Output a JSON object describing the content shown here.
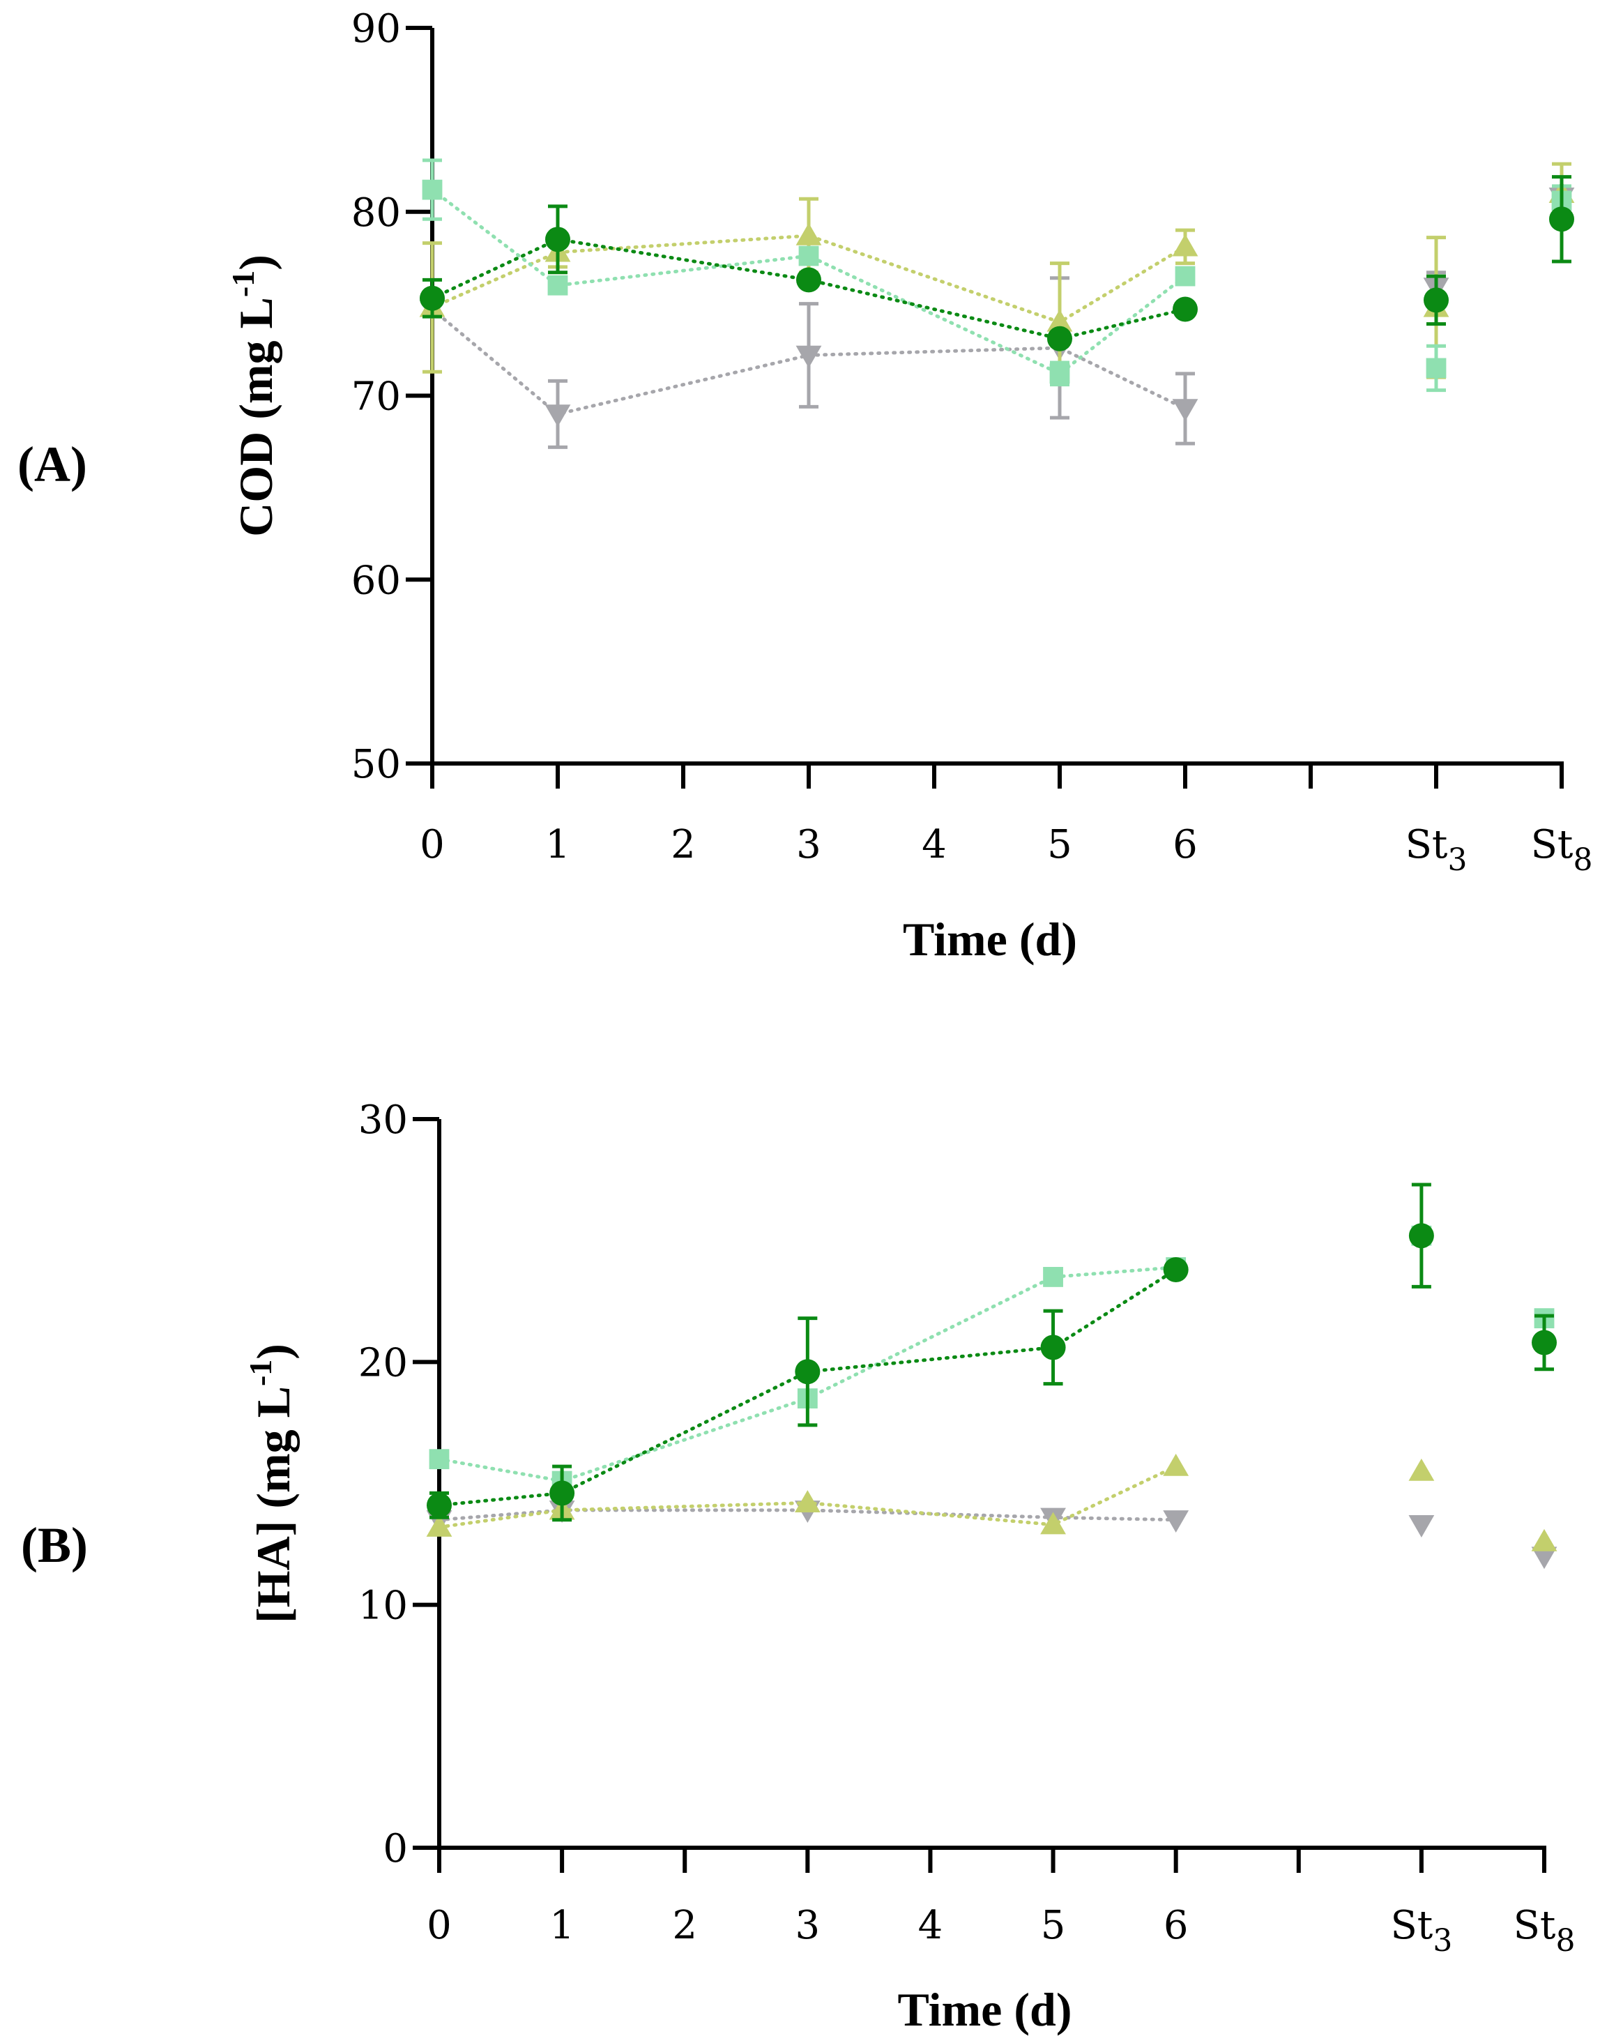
{
  "colors": {
    "s1": "#0b8a14",
    "s2": "#8fe0b0",
    "s3": "#c3cf6c",
    "s4": "#a6a6ab"
  },
  "chart_data": [
    {
      "id": "A",
      "type": "scatter",
      "panel_label": "(A)",
      "xlabel": "Time (d)",
      "ylabel_main": "COD (mg L",
      "ylabel_sup": "-1",
      "ylabel_close": ")",
      "ylim": [
        50,
        90
      ],
      "yticks": [
        50,
        60,
        70,
        80,
        90
      ],
      "ytick_labels": [
        "50",
        "60",
        "70",
        "80",
        "90"
      ],
      "xticks": [
        0,
        1,
        2,
        3,
        4,
        5,
        6,
        7,
        8,
        9
      ],
      "xtick_labels": [
        {
          "x": 0,
          "main": "0",
          "sub": ""
        },
        {
          "x": 1,
          "main": "1",
          "sub": ""
        },
        {
          "x": 2,
          "main": "2",
          "sub": ""
        },
        {
          "x": 3,
          "main": "3",
          "sub": ""
        },
        {
          "x": 4,
          "main": "4",
          "sub": ""
        },
        {
          "x": 5,
          "main": "5",
          "sub": ""
        },
        {
          "x": 6,
          "main": "6",
          "sub": ""
        },
        {
          "x": 8,
          "main": "St",
          "sub": "3"
        },
        {
          "x": 9,
          "main": "St",
          "sub": "8"
        }
      ],
      "series": [
        {
          "key": "s4",
          "marker": "triangle-down",
          "points": [
            {
              "x": 0,
              "y": 74.7,
              "err": 0,
              "line": true
            },
            {
              "x": 1,
              "y": 69.0,
              "err": 1.8,
              "line": true
            },
            {
              "x": 3,
              "y": 72.2,
              "err": 2.8,
              "line": true
            },
            {
              "x": 5,
              "y": 72.6,
              "err": 3.8,
              "line": true
            },
            {
              "x": 6,
              "y": 69.3,
              "err": 1.9,
              "line": true
            },
            {
              "x": 8,
              "y": 75.9,
              "err": 0.8,
              "line": false
            },
            {
              "x": 9,
              "y": 80.8,
              "err": 0.5,
              "line": false
            }
          ]
        },
        {
          "key": "s3",
          "marker": "triangle-up",
          "points": [
            {
              "x": 0,
              "y": 74.8,
              "err": 3.5,
              "line": true
            },
            {
              "x": 1,
              "y": 77.8,
              "err": 0.8,
              "line": true
            },
            {
              "x": 3,
              "y": 78.7,
              "err": 2.0,
              "line": true
            },
            {
              "x": 5,
              "y": 74.0,
              "err": 3.2,
              "line": true
            },
            {
              "x": 6,
              "y": 78.1,
              "err": 0.9,
              "line": true
            },
            {
              "x": 8,
              "y": 74.8,
              "err": 3.8,
              "line": false
            },
            {
              "x": 9,
              "y": 81.0,
              "err": 1.6,
              "line": false
            }
          ]
        },
        {
          "key": "s2",
          "marker": "square",
          "points": [
            {
              "x": 0,
              "y": 81.2,
              "err": 1.6,
              "line": true
            },
            {
              "x": 1,
              "y": 76.0,
              "err": 0,
              "line": true
            },
            {
              "x": 3,
              "y": 77.6,
              "err": 0,
              "line": true
            },
            {
              "x": 5,
              "y": 71.2,
              "err": 0.6,
              "line": true
            },
            {
              "x": 6,
              "y": 76.5,
              "err": 0,
              "line": true
            },
            {
              "x": 8,
              "y": 71.5,
              "err": 1.2,
              "line": false
            },
            {
              "x": 9,
              "y": 80.6,
              "err": 0.8,
              "line": false
            }
          ]
        },
        {
          "key": "s1",
          "marker": "circle",
          "points": [
            {
              "x": 0,
              "y": 75.3,
              "err": 1.0,
              "line": true
            },
            {
              "x": 1,
              "y": 78.5,
              "err": 1.8,
              "line": true
            },
            {
              "x": 3,
              "y": 76.3,
              "err": 0,
              "line": true
            },
            {
              "x": 5,
              "y": 73.1,
              "err": 0,
              "line": true
            },
            {
              "x": 6,
              "y": 74.7,
              "err": 0,
              "line": true
            },
            {
              "x": 8,
              "y": 75.2,
              "err": 1.3,
              "line": false
            },
            {
              "x": 9,
              "y": 79.6,
              "err": 2.3,
              "line": false
            }
          ]
        }
      ]
    },
    {
      "id": "B",
      "type": "scatter",
      "panel_label": "(B)",
      "xlabel": "Time (d)",
      "ylabel_main": "[HA] (mg L",
      "ylabel_sup": "-1",
      "ylabel_close": ")",
      "ylim": [
        0,
        30
      ],
      "yticks": [
        0,
        10,
        20,
        30
      ],
      "ytick_labels": [
        "0",
        "10",
        "20",
        "30"
      ],
      "xticks": [
        0,
        1,
        2,
        3,
        4,
        5,
        6,
        7,
        8,
        9
      ],
      "xtick_labels": [
        {
          "x": 0,
          "main": "0",
          "sub": ""
        },
        {
          "x": 1,
          "main": "1",
          "sub": ""
        },
        {
          "x": 2,
          "main": "2",
          "sub": ""
        },
        {
          "x": 3,
          "main": "3",
          "sub": ""
        },
        {
          "x": 4,
          "main": "4",
          "sub": ""
        },
        {
          "x": 5,
          "main": "5",
          "sub": ""
        },
        {
          "x": 6,
          "main": "6",
          "sub": ""
        },
        {
          "x": 8,
          "main": "St",
          "sub": "3"
        },
        {
          "x": 9,
          "main": "St",
          "sub": "8"
        }
      ],
      "series": [
        {
          "key": "s4",
          "marker": "triangle-down",
          "points": [
            {
              "x": 0,
              "y": 13.5,
              "err": 0,
              "line": true
            },
            {
              "x": 1,
              "y": 13.9,
              "err": 0,
              "line": true
            },
            {
              "x": 3,
              "y": 13.9,
              "err": 0,
              "line": true
            },
            {
              "x": 5,
              "y": 13.6,
              "err": 0,
              "line": true
            },
            {
              "x": 6,
              "y": 13.5,
              "err": 0,
              "line": true
            },
            {
              "x": 8,
              "y": 13.3,
              "err": 0,
              "line": false
            },
            {
              "x": 9,
              "y": 12.0,
              "err": 0,
              "line": false
            }
          ]
        },
        {
          "key": "s3",
          "marker": "triangle-up",
          "points": [
            {
              "x": 0,
              "y": 13.2,
              "err": 0,
              "line": true
            },
            {
              "x": 1,
              "y": 13.9,
              "err": 0,
              "line": true
            },
            {
              "x": 3,
              "y": 14.2,
              "err": 0,
              "line": true
            },
            {
              "x": 5,
              "y": 13.3,
              "err": 0,
              "line": true
            },
            {
              "x": 6,
              "y": 15.7,
              "err": 0,
              "line": true
            },
            {
              "x": 8,
              "y": 15.5,
              "err": 0,
              "line": false
            },
            {
              "x": 9,
              "y": 12.6,
              "err": 0,
              "line": false
            }
          ]
        },
        {
          "key": "s2",
          "marker": "square",
          "points": [
            {
              "x": 0,
              "y": 16.0,
              "err": 0,
              "line": true
            },
            {
              "x": 1,
              "y": 15.1,
              "err": 0,
              "line": true
            },
            {
              "x": 3,
              "y": 18.5,
              "err": 0,
              "line": true
            },
            {
              "x": 5,
              "y": 23.5,
              "err": 0,
              "line": true
            },
            {
              "x": 6,
              "y": 23.9,
              "err": 0,
              "line": true
            },
            {
              "x": 8,
              "y": 25.2,
              "err": 0,
              "line": false
            },
            {
              "x": 9,
              "y": 21.8,
              "err": 0,
              "line": false
            }
          ]
        },
        {
          "key": "s1",
          "marker": "circle",
          "points": [
            {
              "x": 0,
              "y": 14.1,
              "err": 0.5,
              "line": true
            },
            {
              "x": 1,
              "y": 14.6,
              "err": 1.1,
              "line": true
            },
            {
              "x": 3,
              "y": 19.6,
              "err": 2.2,
              "line": true
            },
            {
              "x": 5,
              "y": 20.6,
              "err": 1.5,
              "line": true
            },
            {
              "x": 6,
              "y": 23.8,
              "err": 0,
              "line": true
            },
            {
              "x": 8,
              "y": 25.2,
              "err": 2.1,
              "line": false
            },
            {
              "x": 9,
              "y": 20.8,
              "err": 1.1,
              "line": false
            }
          ]
        }
      ]
    }
  ]
}
